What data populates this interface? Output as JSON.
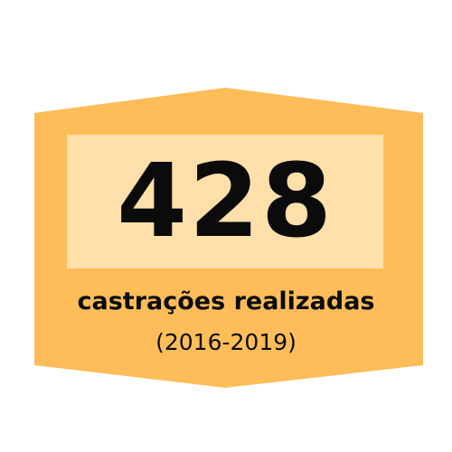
{
  "colors": {
    "badge_fill": "#ffbd59",
    "number_box_fill": "#ffdfaa",
    "text": "#0b0b0b",
    "background": "#ffffff"
  },
  "stat": {
    "value": "428",
    "label": "castrações realizadas",
    "period": "(2016-2019)"
  }
}
